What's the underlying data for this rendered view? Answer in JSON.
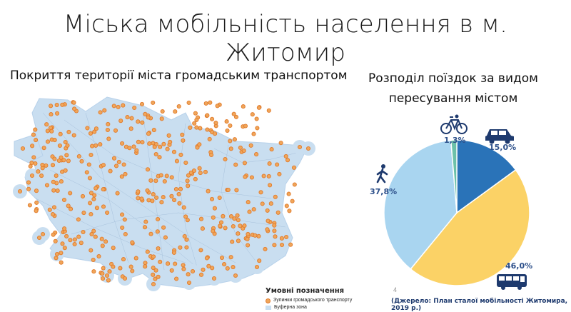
{
  "title": "Міська мобільність населення  в м. Житомир",
  "left_subtitle": "Покриття території міста громадським транспортом",
  "right_subtitle": "Розподіл поїздок за видом пересування містом",
  "legend": {
    "title": "Умовні позначення",
    "items": [
      "Зупинки громадського транспорту",
      "Буферна зона"
    ]
  },
  "page_number": "4",
  "source": "(Джерело: План сталої мобільності Житомира, 2019 р.)",
  "colors": {
    "map_buffer": "#c9def0",
    "stop_fill": "#f0a65a",
    "stop_stroke": "#e07a2c",
    "pie_car": "#2a73b8",
    "pie_public": "#fbd266",
    "pie_walk": "#a9d5f0",
    "pie_bike": "#6cc1a9",
    "label": "#2c4f8a"
  },
  "icons": {
    "walk": "walking-person-icon",
    "bike": "bicycle-icon",
    "car": "car-icon",
    "bus": "bus-icon"
  },
  "chart_data": {
    "type": "pie",
    "title": "Розподіл поїздок за видом пересування містом",
    "slices": [
      {
        "name": "Автомобіль",
        "value": 15.0,
        "label": "15,0%",
        "icon": "car-icon"
      },
      {
        "name": "Громадський транспорт",
        "value": 46.0,
        "label": "46,0%",
        "icon": "bus-icon"
      },
      {
        "name": "Пішки",
        "value": 37.8,
        "label": "37,8%",
        "icon": "walking-person-icon"
      },
      {
        "name": "Велосипед",
        "value": 1.3,
        "label": "1,3%",
        "icon": "bicycle-icon"
      }
    ],
    "start": "12 o'clock",
    "direction": "clockwise",
    "legend": "none"
  }
}
